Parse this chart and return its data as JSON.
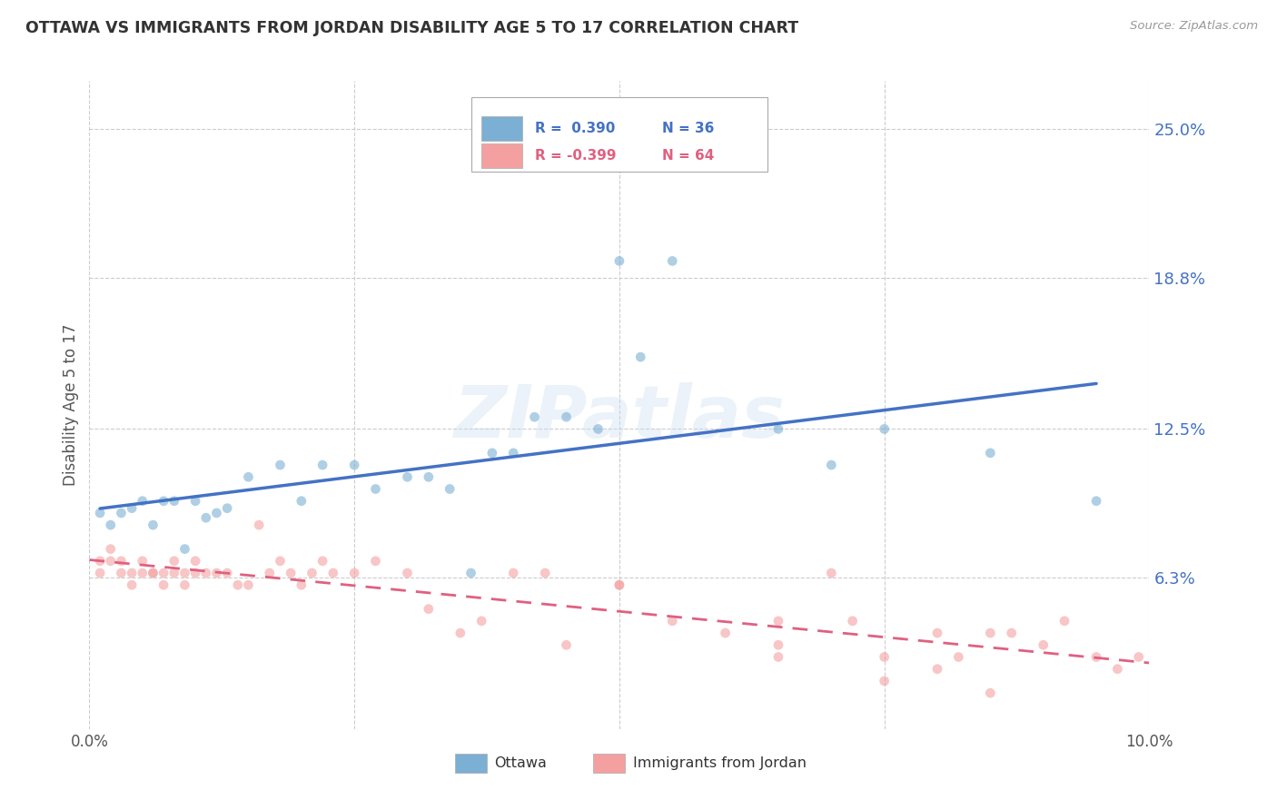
{
  "title": "OTTAWA VS IMMIGRANTS FROM JORDAN DISABILITY AGE 5 TO 17 CORRELATION CHART",
  "source": "Source: ZipAtlas.com",
  "ylabel": "Disability Age 5 to 17",
  "xlim": [
    0.0,
    0.1
  ],
  "ylim": [
    0.0,
    0.27
  ],
  "yticks": [
    0.063,
    0.125,
    0.188,
    0.25
  ],
  "ytick_labels": [
    "6.3%",
    "12.5%",
    "18.8%",
    "25.0%"
  ],
  "xticks": [
    0.0,
    0.025,
    0.05,
    0.075,
    0.1
  ],
  "xtick_labels": [
    "0.0%",
    "",
    "",
    "",
    "10.0%"
  ],
  "legend_ottawa_r": "R =  0.390",
  "legend_ottawa_n": "N = 36",
  "legend_jordan_r": "R = -0.399",
  "legend_jordan_n": "N = 64",
  "ottawa_color": "#7BAFD4",
  "jordan_color": "#F4A0A0",
  "ottawa_line_color": "#4472C4",
  "jordan_line_color": "#E06080",
  "background_color": "#FFFFFF",
  "grid_color": "#CCCCCC",
  "watermark": "ZIPatlas",
  "ottawa_scatter_x": [
    0.001,
    0.002,
    0.003,
    0.004,
    0.005,
    0.006,
    0.007,
    0.008,
    0.009,
    0.01,
    0.011,
    0.012,
    0.013,
    0.015,
    0.018,
    0.02,
    0.022,
    0.025,
    0.027,
    0.03,
    0.032,
    0.034,
    0.036,
    0.038,
    0.04,
    0.042,
    0.045,
    0.048,
    0.05,
    0.052,
    0.055,
    0.065,
    0.07,
    0.075,
    0.085,
    0.095
  ],
  "ottawa_scatter_y": [
    0.09,
    0.085,
    0.09,
    0.092,
    0.095,
    0.085,
    0.095,
    0.095,
    0.075,
    0.095,
    0.088,
    0.09,
    0.092,
    0.105,
    0.11,
    0.095,
    0.11,
    0.11,
    0.1,
    0.105,
    0.105,
    0.1,
    0.065,
    0.115,
    0.115,
    0.13,
    0.13,
    0.125,
    0.195,
    0.155,
    0.195,
    0.125,
    0.11,
    0.125,
    0.115,
    0.095
  ],
  "jordan_scatter_x": [
    0.001,
    0.001,
    0.002,
    0.002,
    0.003,
    0.003,
    0.004,
    0.004,
    0.005,
    0.005,
    0.006,
    0.006,
    0.007,
    0.007,
    0.008,
    0.008,
    0.009,
    0.009,
    0.01,
    0.01,
    0.011,
    0.012,
    0.013,
    0.014,
    0.015,
    0.016,
    0.017,
    0.018,
    0.019,
    0.02,
    0.021,
    0.022,
    0.023,
    0.025,
    0.027,
    0.03,
    0.032,
    0.035,
    0.037,
    0.04,
    0.043,
    0.045,
    0.05,
    0.05,
    0.055,
    0.06,
    0.065,
    0.065,
    0.065,
    0.07,
    0.072,
    0.075,
    0.075,
    0.08,
    0.08,
    0.082,
    0.085,
    0.085,
    0.087,
    0.09,
    0.092,
    0.095,
    0.097,
    0.099
  ],
  "jordan_scatter_y": [
    0.07,
    0.065,
    0.07,
    0.075,
    0.065,
    0.07,
    0.06,
    0.065,
    0.065,
    0.07,
    0.065,
    0.065,
    0.065,
    0.06,
    0.07,
    0.065,
    0.065,
    0.06,
    0.07,
    0.065,
    0.065,
    0.065,
    0.065,
    0.06,
    0.06,
    0.085,
    0.065,
    0.07,
    0.065,
    0.06,
    0.065,
    0.07,
    0.065,
    0.065,
    0.07,
    0.065,
    0.05,
    0.04,
    0.045,
    0.065,
    0.065,
    0.035,
    0.06,
    0.06,
    0.045,
    0.04,
    0.035,
    0.03,
    0.045,
    0.065,
    0.045,
    0.02,
    0.03,
    0.025,
    0.04,
    0.03,
    0.015,
    0.04,
    0.04,
    0.035,
    0.045,
    0.03,
    0.025,
    0.03
  ]
}
